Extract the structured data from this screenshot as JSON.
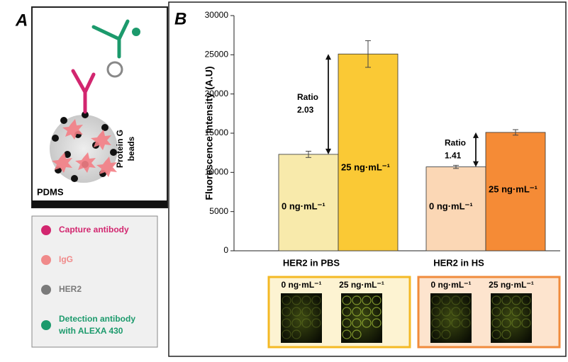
{
  "chart_data": {
    "type": "bar",
    "panel_label": "B",
    "ylabel": "Fluorescence Intensity (A.U)",
    "categories": [
      "HER2 in PBS",
      "HER2 in HS"
    ],
    "series": [
      {
        "name": "0 ng·mL⁻¹",
        "colors": [
          "#f8eaab",
          "#fbd7b5"
        ],
        "values": [
          12300,
          10700
        ],
        "errors": [
          400,
          200
        ]
      },
      {
        "name": "25 ng·mL⁻¹",
        "colors": [
          "#fac935",
          "#f58b36"
        ],
        "values": [
          25100,
          15100
        ],
        "errors": [
          1700,
          350
        ]
      }
    ],
    "annotations": [
      {
        "label": "Ratio",
        "value": "2.03"
      },
      {
        "label": "Ratio",
        "value": "1.41"
      }
    ],
    "ylim": [
      0,
      30000
    ],
    "yticks": [
      0,
      5000,
      10000,
      15000,
      20000,
      25000,
      30000
    ],
    "insets": [
      {
        "labels": [
          "0 ng·mL⁻¹",
          "25 ng·mL⁻¹"
        ],
        "border": "#f4b925",
        "background": "#fdf3d2"
      },
      {
        "labels": [
          "0 ng·mL⁻¹",
          "25 ng·mL⁻¹"
        ],
        "border": "#f08b3c",
        "background": "#fde4ce"
      }
    ]
  },
  "panel_a": {
    "panel_label": "A",
    "substrate": "PDMS",
    "beads": [
      "Protein G",
      "beads"
    ],
    "legend": [
      {
        "text": [
          "Capture antibody"
        ],
        "color": "#d2266f"
      },
      {
        "text": [
          "IgG"
        ],
        "color": "#f08a8a"
      },
      {
        "text": [
          "HER2"
        ],
        "color": "#7a7a7a"
      },
      {
        "text": [
          "Detection antibody",
          "with ALEXA 430"
        ],
        "color": "#1c9a6c"
      }
    ]
  }
}
